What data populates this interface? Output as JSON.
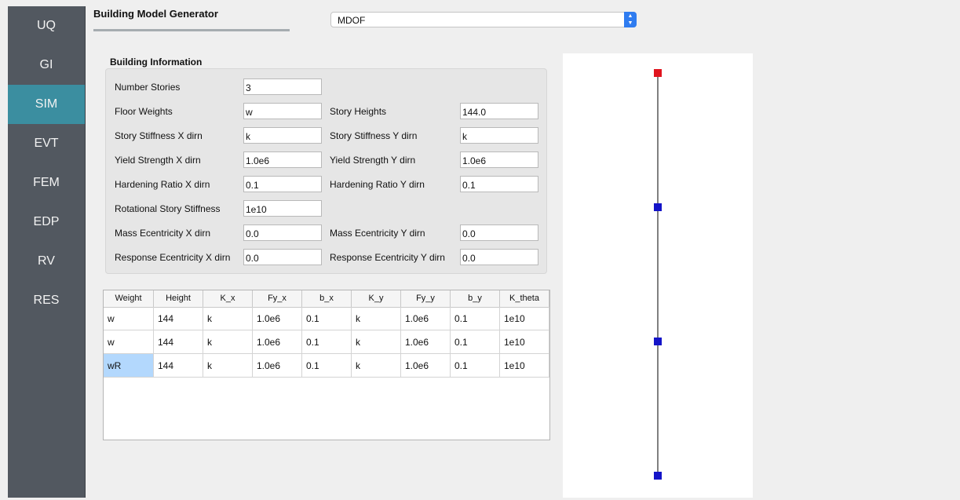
{
  "sidebar": {
    "items": [
      {
        "label": "UQ",
        "active": false
      },
      {
        "label": "GI",
        "active": false
      },
      {
        "label": "SIM",
        "active": true
      },
      {
        "label": "EVT",
        "active": false
      },
      {
        "label": "FEM",
        "active": false
      },
      {
        "label": "EDP",
        "active": false
      },
      {
        "label": "RV",
        "active": false
      },
      {
        "label": "RES",
        "active": false
      }
    ]
  },
  "header": {
    "title": "Building Model Generator",
    "model_select": "MDOF"
  },
  "building_info": {
    "section_title": "Building Information",
    "number_stories_label": "Number Stories",
    "number_stories": "3",
    "floor_weights_label": "Floor Weights",
    "floor_weights": "w",
    "story_heights_label": "Story Heights",
    "story_heights": "144.0",
    "stiffness_x_label": "Story Stiffness X dirn",
    "stiffness_x": "k",
    "stiffness_y_label": "Story Stiffness Y dirn",
    "stiffness_y": "k",
    "yield_x_label": "Yield Strength X dirn",
    "yield_x": "1.0e6",
    "yield_y_label": "Yield Strength Y dirn",
    "yield_y": "1.0e6",
    "hardening_x_label": "Hardening Ratio X dirn",
    "hardening_x": "0.1",
    "hardening_y_label": "Hardening Ratio Y dirn",
    "hardening_y": "0.1",
    "rotational_label": "Rotational Story Stiffness",
    "rotational": "1e10",
    "mass_ecc_x_label": "Mass Ecentricity X dirn",
    "mass_ecc_x": "0.0",
    "mass_ecc_y_label": "Mass Ecentricity Y dirn",
    "mass_ecc_y": "0.0",
    "resp_ecc_x_label": "Response Ecentricity X dirn",
    "resp_ecc_x": "0.0",
    "resp_ecc_y_label": "Response Ecentricity Y dirn",
    "resp_ecc_y": "0.0"
  },
  "table": {
    "columns": [
      "Weight",
      "Height",
      "K_x",
      "Fy_x",
      "b_x",
      "K_y",
      "Fy_y",
      "b_y",
      "K_theta"
    ],
    "rows": [
      [
        "w",
        "144",
        "k",
        "1.0e6",
        "0.1",
        "k",
        "1.0e6",
        "0.1",
        "1e10"
      ],
      [
        "w",
        "144",
        "k",
        "1.0e6",
        "0.1",
        "k",
        "1.0e6",
        "0.1",
        "1e10"
      ],
      [
        "wR",
        "144",
        "k",
        "1.0e6",
        "0.1",
        "k",
        "1.0e6",
        "0.1",
        "1e10"
      ]
    ],
    "selected_cell": {
      "row": 2,
      "col": 0
    }
  },
  "model_view": {
    "node_count": 4,
    "selected_node": "top",
    "colors": {
      "selected_node": "#e0141e",
      "node": "#1414c8",
      "line": "#000000"
    }
  }
}
